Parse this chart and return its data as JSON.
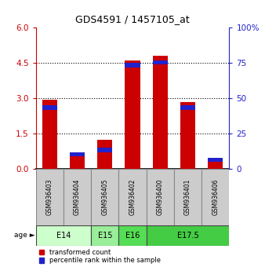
{
  "title": "GDS4591 / 1457105_at",
  "samples": [
    "GSM936403",
    "GSM936404",
    "GSM936405",
    "GSM936402",
    "GSM936400",
    "GSM936401",
    "GSM936406"
  ],
  "transformed_count": [
    2.95,
    0.55,
    1.25,
    4.6,
    4.8,
    2.85,
    0.35
  ],
  "percentile_rank": [
    45,
    12,
    15,
    75,
    77,
    45,
    8
  ],
  "age_groups": [
    {
      "label": "E14",
      "start": 0,
      "end": 2,
      "color": "#ccffcc"
    },
    {
      "label": "E15",
      "start": 2,
      "end": 3,
      "color": "#99ee99"
    },
    {
      "label": "E16",
      "start": 3,
      "end": 4,
      "color": "#55dd55"
    },
    {
      "label": "E17.5",
      "start": 4,
      "end": 7,
      "color": "#44cc44"
    }
  ],
  "ylim_left": [
    0,
    6
  ],
  "ylim_right": [
    0,
    100
  ],
  "yticks_left": [
    0,
    1.5,
    3,
    4.5,
    6
  ],
  "yticks_right": [
    0,
    25,
    50,
    75,
    100
  ],
  "bar_color_red": "#cc0000",
  "bar_color_blue": "#2222cc",
  "bar_width": 0.55,
  "grid_color": "black",
  "left_tick_color": "#cc0000",
  "right_tick_color": "#2222cc"
}
